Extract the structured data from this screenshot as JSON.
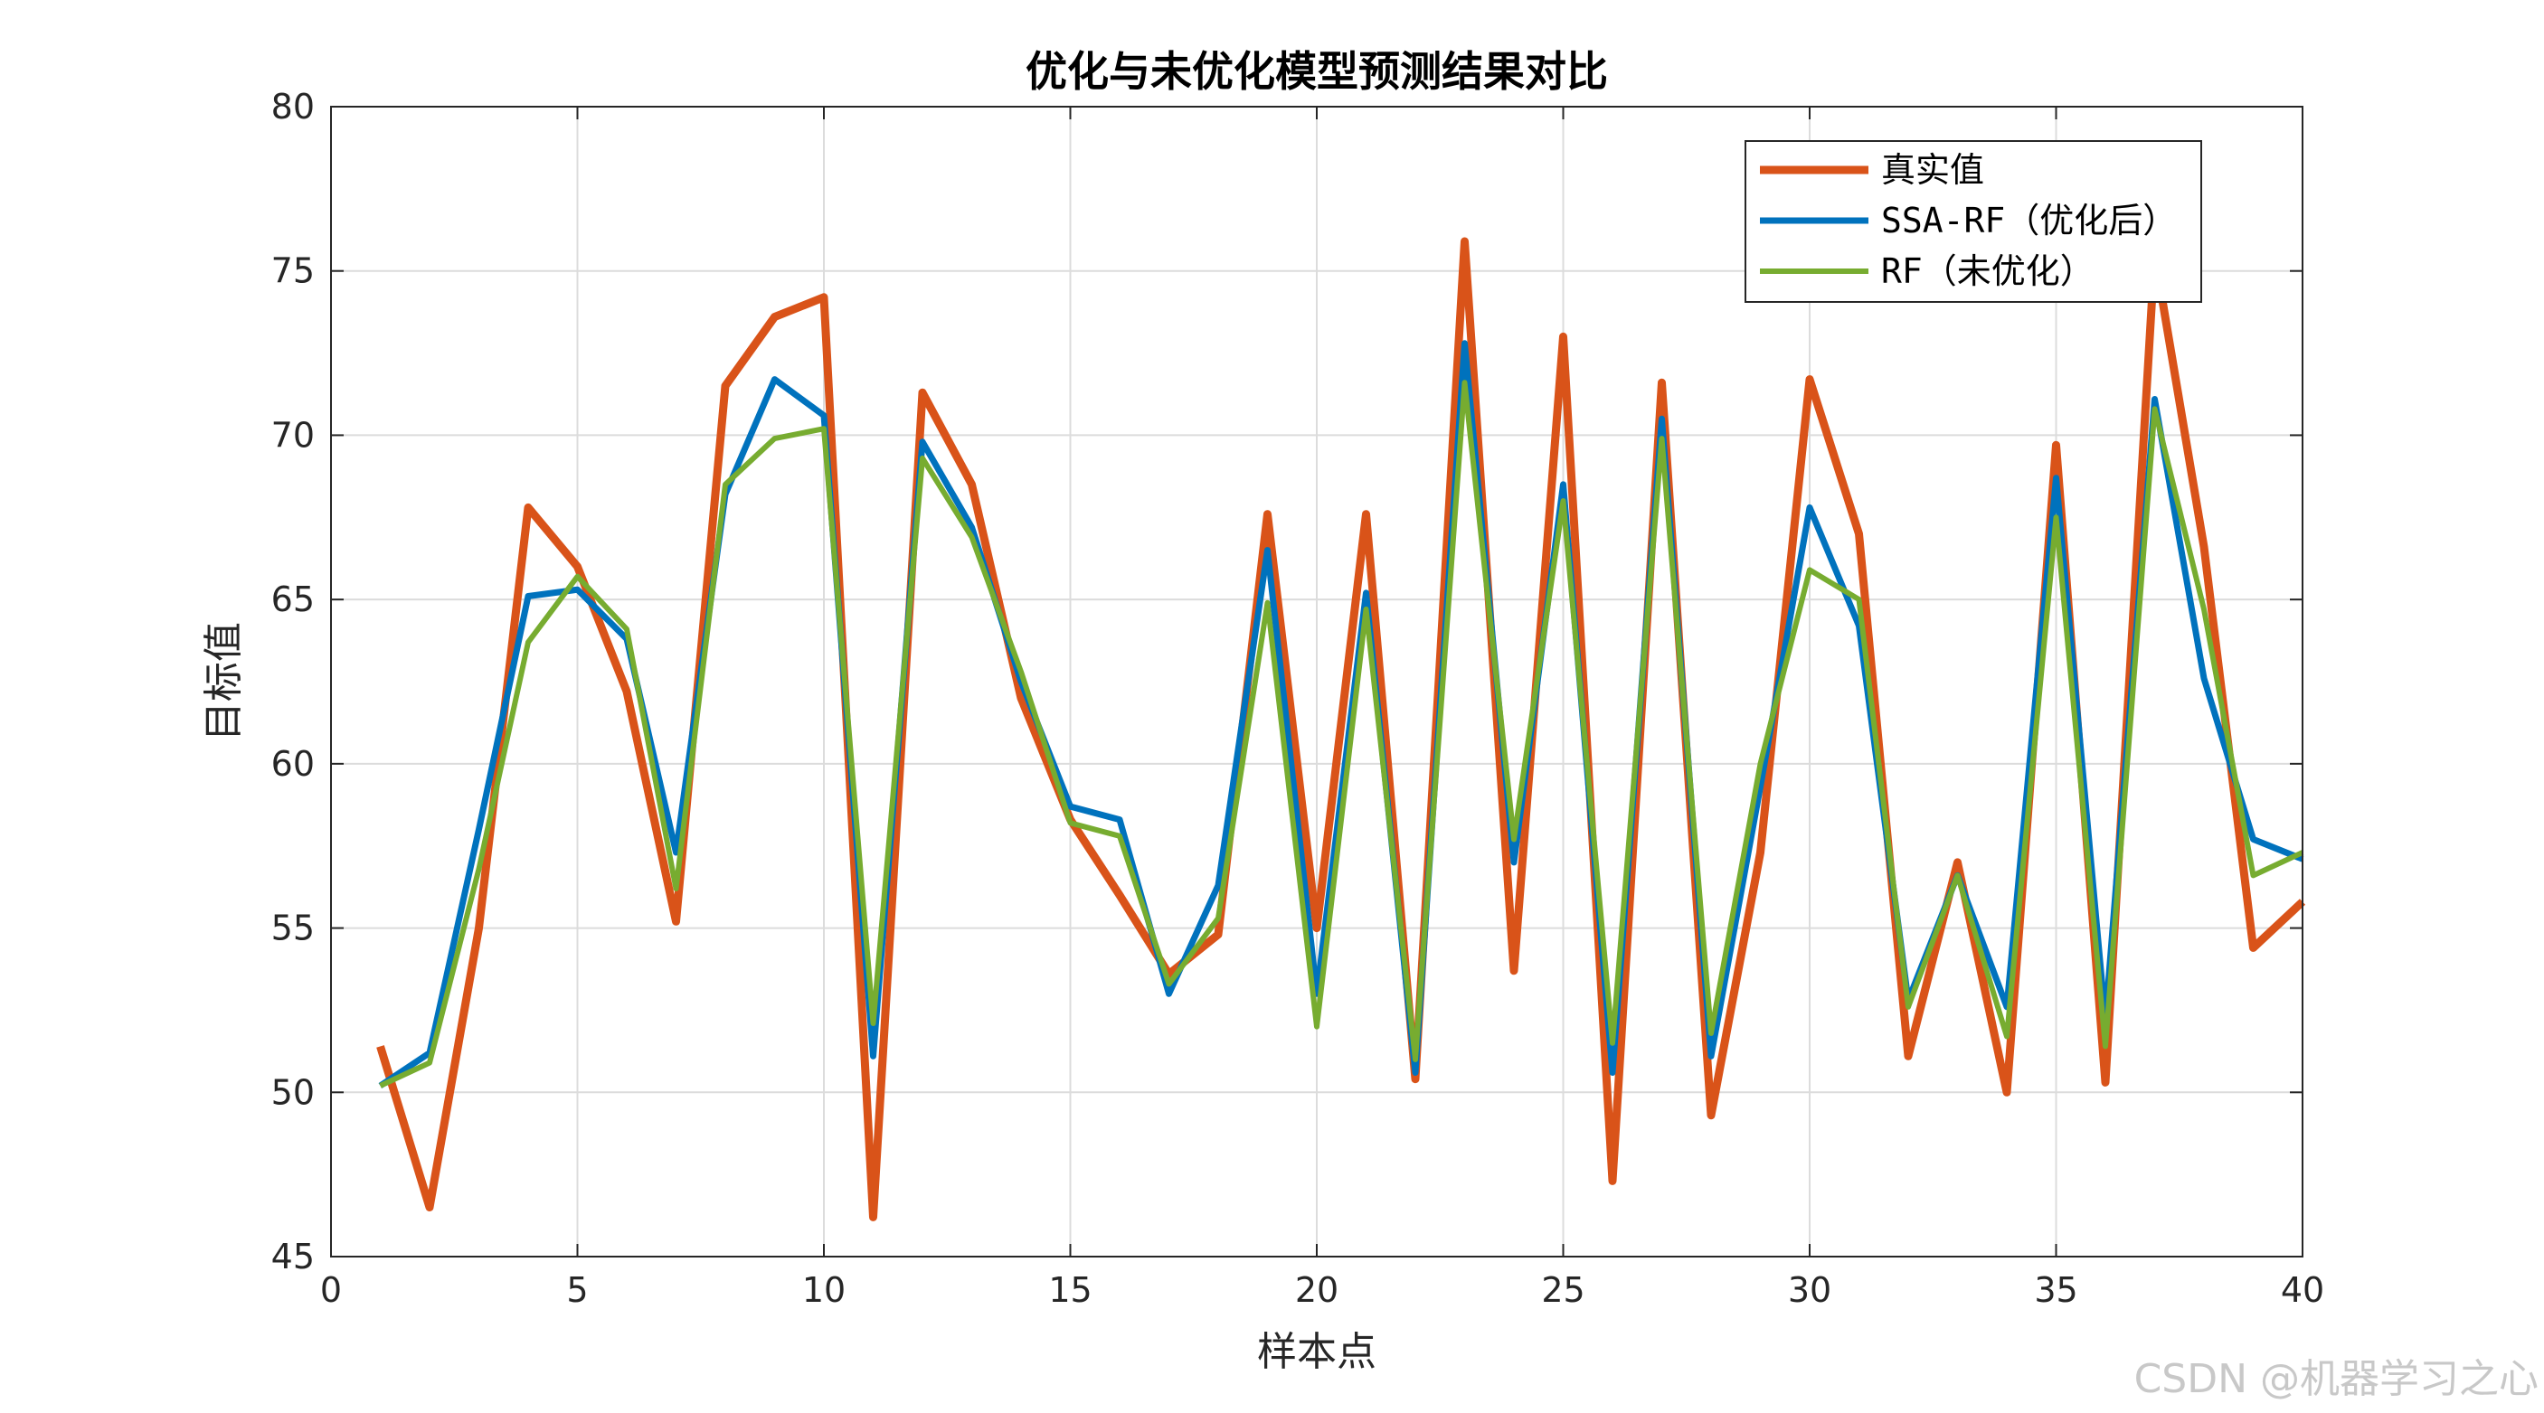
{
  "chart_data": {
    "type": "line",
    "title": "优化与未优化模型预测结果对比",
    "xlabel": "样本点",
    "ylabel": "目标值",
    "xlim": [
      0,
      40
    ],
    "ylim": [
      45,
      80
    ],
    "xticks": [
      0,
      5,
      10,
      15,
      20,
      25,
      30,
      35,
      40
    ],
    "yticks": [
      45,
      50,
      55,
      60,
      65,
      70,
      75,
      80
    ],
    "grid": true,
    "legend_position": "top-right",
    "x": [
      1,
      2,
      3,
      4,
      5,
      6,
      7,
      8,
      9,
      10,
      11,
      12,
      13,
      14,
      15,
      16,
      17,
      18,
      19,
      20,
      21,
      22,
      23,
      24,
      25,
      26,
      27,
      28,
      29,
      30,
      31,
      32,
      33,
      34,
      35,
      36,
      37,
      38,
      39,
      40
    ],
    "series": [
      {
        "name": "真实值",
        "color": "#D95319",
        "values": [
          51.4,
          46.5,
          55.0,
          67.8,
          66.0,
          62.2,
          55.2,
          71.5,
          73.6,
          74.2,
          46.2,
          71.3,
          68.5,
          62.0,
          58.3,
          56.0,
          53.6,
          54.8,
          67.6,
          55.0,
          67.6,
          50.4,
          75.9,
          53.7,
          73.0,
          47.3,
          71.6,
          49.3,
          57.3,
          71.7,
          67.0,
          51.1,
          57.0,
          50.0,
          69.7,
          50.3,
          75.5,
          66.6,
          54.4,
          55.8
        ]
      },
      {
        "name": "SSA-RF（优化后）",
        "color": "#0072BD",
        "values": [
          50.2,
          51.2,
          58.0,
          65.1,
          65.3,
          63.8,
          57.3,
          68.2,
          71.7,
          70.6,
          51.1,
          69.8,
          67.2,
          62.5,
          58.7,
          58.3,
          53.0,
          56.3,
          66.5,
          53.0,
          65.2,
          50.6,
          72.8,
          57.0,
          68.5,
          50.6,
          70.5,
          51.1,
          59.3,
          67.8,
          64.2,
          52.8,
          56.6,
          52.6,
          68.7,
          52.2,
          71.1,
          62.6,
          57.7,
          57.1
        ]
      },
      {
        "name": "RF（未优化）",
        "color": "#77AC30",
        "values": [
          50.2,
          50.9,
          56.8,
          63.7,
          65.7,
          64.1,
          56.2,
          68.5,
          69.9,
          70.2,
          52.1,
          69.3,
          66.9,
          62.8,
          58.2,
          57.8,
          53.3,
          55.3,
          64.9,
          52.0,
          64.7,
          51.0,
          71.6,
          57.7,
          68.0,
          51.5,
          69.9,
          51.8,
          60.0,
          65.9,
          65.0,
          52.6,
          56.6,
          51.7,
          67.5,
          51.4,
          70.8,
          64.7,
          56.6,
          57.3
        ]
      }
    ]
  },
  "watermark": "CSDN @机器学习之心"
}
